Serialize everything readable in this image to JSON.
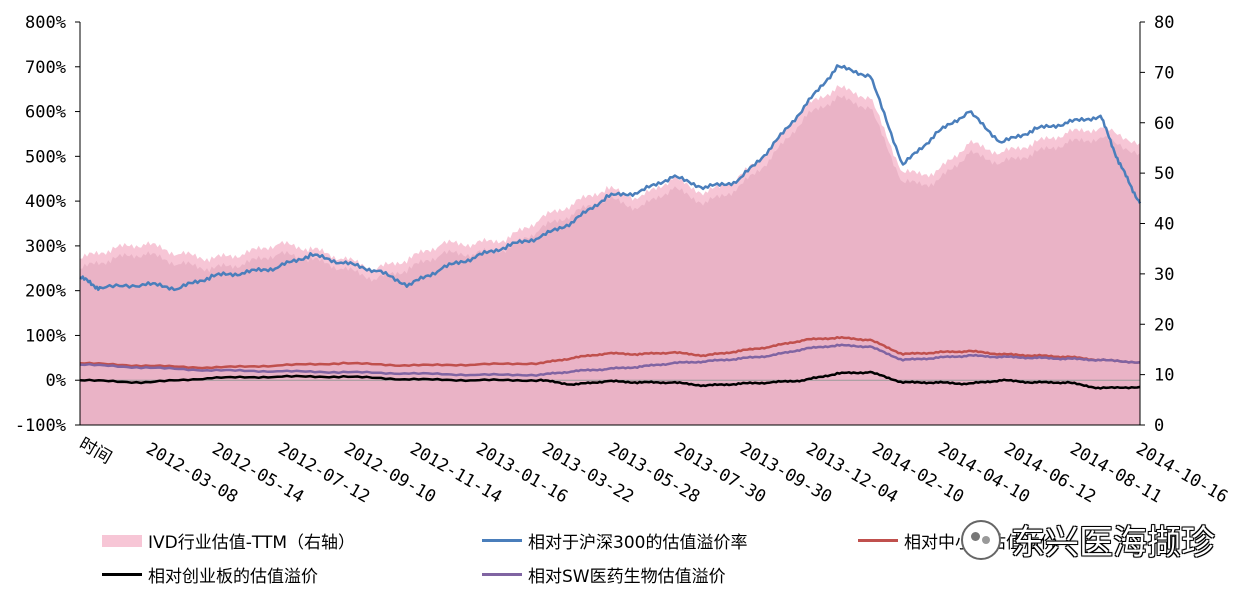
{
  "chart_data": {
    "type": "area+line",
    "xlabel": "时间",
    "x_ticks": [
      "2012-03-08",
      "2012-05-14",
      "2012-07-12",
      "2012-09-10",
      "2012-11-14",
      "2013-01-16",
      "2013-03-22",
      "2013-05-28",
      "2013-07-30",
      "2013-09-30",
      "2013-12-04",
      "2014-02-10",
      "2014-04-10",
      "2014-06-12",
      "2014-08-11",
      "2014-10-16"
    ],
    "y_left": {
      "ticks": [
        "800%",
        "700%",
        "600%",
        "500%",
        "400%",
        "300%",
        "200%",
        "100%",
        "0%",
        "-100%"
      ],
      "min": -100,
      "max": 800
    },
    "y_right": {
      "ticks": [
        "80",
        "70",
        "60",
        "50",
        "40",
        "30",
        "20",
        "10",
        "0"
      ],
      "min": 0,
      "max": 80
    },
    "x_start": 0,
    "x_end": 16.1,
    "series": [
      {
        "name": "IVD行业估值-TTM（右轴）",
        "type": "area",
        "axis": "right",
        "color": "#F7C6D6",
        "points": [
          [
            0,
            33
          ],
          [
            0.5,
            35
          ],
          [
            1,
            36
          ],
          [
            1.5,
            34
          ],
          [
            2,
            33
          ],
          [
            2.5,
            34
          ],
          [
            3,
            36
          ],
          [
            3.5,
            35
          ],
          [
            4,
            33
          ],
          [
            4.5,
            31
          ],
          [
            5,
            33
          ],
          [
            5.5,
            36
          ],
          [
            6,
            36
          ],
          [
            6.5,
            37
          ],
          [
            7,
            41
          ],
          [
            7.5,
            44
          ],
          [
            8,
            47
          ],
          [
            8.5,
            45
          ],
          [
            9,
            49
          ],
          [
            9.5,
            46
          ],
          [
            10,
            49
          ],
          [
            10.5,
            55
          ],
          [
            11,
            63
          ],
          [
            11.5,
            67
          ],
          [
            12,
            65
          ],
          [
            12.5,
            50
          ],
          [
            13,
            50
          ],
          [
            13.5,
            56
          ],
          [
            14,
            54
          ],
          [
            14.5,
            56
          ],
          [
            15,
            58
          ],
          [
            15.5,
            59
          ],
          [
            16.1,
            56
          ]
        ]
      },
      {
        "name": "相对于沪深300的估值溢价率",
        "type": "line",
        "axis": "left",
        "color": "#4A7EBB",
        "points": [
          [
            0,
            230
          ],
          [
            0.3,
            205
          ],
          [
            1,
            215
          ],
          [
            1.5,
            205
          ],
          [
            2,
            232
          ],
          [
            2.5,
            240
          ],
          [
            3,
            252
          ],
          [
            3.5,
            280
          ],
          [
            4,
            262
          ],
          [
            4.5,
            245
          ],
          [
            5,
            212
          ],
          [
            5.5,
            250
          ],
          [
            6,
            275
          ],
          [
            6.5,
            300
          ],
          [
            7,
            320
          ],
          [
            7.5,
            355
          ],
          [
            8,
            410
          ],
          [
            8.5,
            420
          ],
          [
            9,
            455
          ],
          [
            9.5,
            430
          ],
          [
            10,
            445
          ],
          [
            10.5,
            520
          ],
          [
            11,
            610
          ],
          [
            11.5,
            700
          ],
          [
            12,
            680
          ],
          [
            12.5,
            480
          ],
          [
            13,
            550
          ],
          [
            13.5,
            600
          ],
          [
            14,
            530
          ],
          [
            14.5,
            560
          ],
          [
            15,
            575
          ],
          [
            15.5,
            590
          ],
          [
            15.8,
            480
          ],
          [
            16.1,
            395
          ]
        ]
      },
      {
        "name": "相对中小板估值溢价",
        "type": "line",
        "axis": "left",
        "color": "#C0504D",
        "points": [
          [
            0,
            38
          ],
          [
            1,
            32
          ],
          [
            2,
            28
          ],
          [
            3,
            33
          ],
          [
            4,
            38
          ],
          [
            5,
            33
          ],
          [
            6,
            35
          ],
          [
            7,
            38
          ],
          [
            7.5,
            50
          ],
          [
            8,
            60
          ],
          [
            8.5,
            58
          ],
          [
            9,
            62
          ],
          [
            9.5,
            55
          ],
          [
            10,
            65
          ],
          [
            10.5,
            75
          ],
          [
            11,
            90
          ],
          [
            11.5,
            95
          ],
          [
            12,
            90
          ],
          [
            12.5,
            58
          ],
          [
            13,
            62
          ],
          [
            13.5,
            65
          ],
          [
            14,
            58
          ],
          [
            14.5,
            55
          ],
          [
            15,
            52
          ],
          [
            15.5,
            45
          ],
          [
            16.1,
            40
          ]
        ]
      },
      {
        "name": "相对创业板的估值溢价",
        "type": "line",
        "axis": "left",
        "color": "#000000",
        "points": [
          [
            0,
            0
          ],
          [
            1,
            -5
          ],
          [
            2,
            5
          ],
          [
            3,
            8
          ],
          [
            4,
            8
          ],
          [
            5,
            2
          ],
          [
            6,
            0
          ],
          [
            7,
            0
          ],
          [
            7.5,
            -10
          ],
          [
            8,
            -2
          ],
          [
            8.5,
            -5
          ],
          [
            9,
            -5
          ],
          [
            9.5,
            -12
          ],
          [
            10,
            -8
          ],
          [
            10.5,
            -5
          ],
          [
            11,
            0
          ],
          [
            11.5,
            15
          ],
          [
            12,
            18
          ],
          [
            12.5,
            -5
          ],
          [
            13,
            -5
          ],
          [
            13.5,
            -8
          ],
          [
            14,
            0
          ],
          [
            14.5,
            -5
          ],
          [
            15,
            -5
          ],
          [
            15.5,
            -18
          ],
          [
            16.1,
            -15
          ]
        ]
      },
      {
        "name": "相对SW医药生物估值溢价",
        "type": "line",
        "axis": "left",
        "color": "#8064A2",
        "points": [
          [
            0,
            35
          ],
          [
            1,
            28
          ],
          [
            2,
            22
          ],
          [
            3,
            20
          ],
          [
            4,
            18
          ],
          [
            5,
            15
          ],
          [
            6,
            12
          ],
          [
            7,
            12
          ],
          [
            7.5,
            20
          ],
          [
            8,
            25
          ],
          [
            8.5,
            30
          ],
          [
            9,
            38
          ],
          [
            9.5,
            42
          ],
          [
            10,
            48
          ],
          [
            10.5,
            55
          ],
          [
            11,
            70
          ],
          [
            11.5,
            78
          ],
          [
            12,
            75
          ],
          [
            12.5,
            45
          ],
          [
            13,
            50
          ],
          [
            13.5,
            55
          ],
          [
            14,
            52
          ],
          [
            14.5,
            50
          ],
          [
            15,
            48
          ],
          [
            15.5,
            45
          ],
          [
            16.1,
            40
          ]
        ]
      }
    ]
  },
  "legend": [
    {
      "label": "IVD行业估值-TTM（右轴）",
      "color": "#F7C6D6",
      "kind": "area"
    },
    {
      "label": "相对于沪深300的估值溢价率",
      "color": "#4A7EBB",
      "kind": "line"
    },
    {
      "label": "相对中小板估值溢价",
      "color": "#C0504D",
      "kind": "line"
    },
    {
      "label": "相对创业板的估值溢价",
      "color": "#000000",
      "kind": "line"
    },
    {
      "label": "相对SW医药生物估值溢价",
      "color": "#8064A2",
      "kind": "line"
    }
  ],
  "watermark": {
    "text": "东兴医海撷珍",
    "icon": "wechat-logo-icon"
  }
}
